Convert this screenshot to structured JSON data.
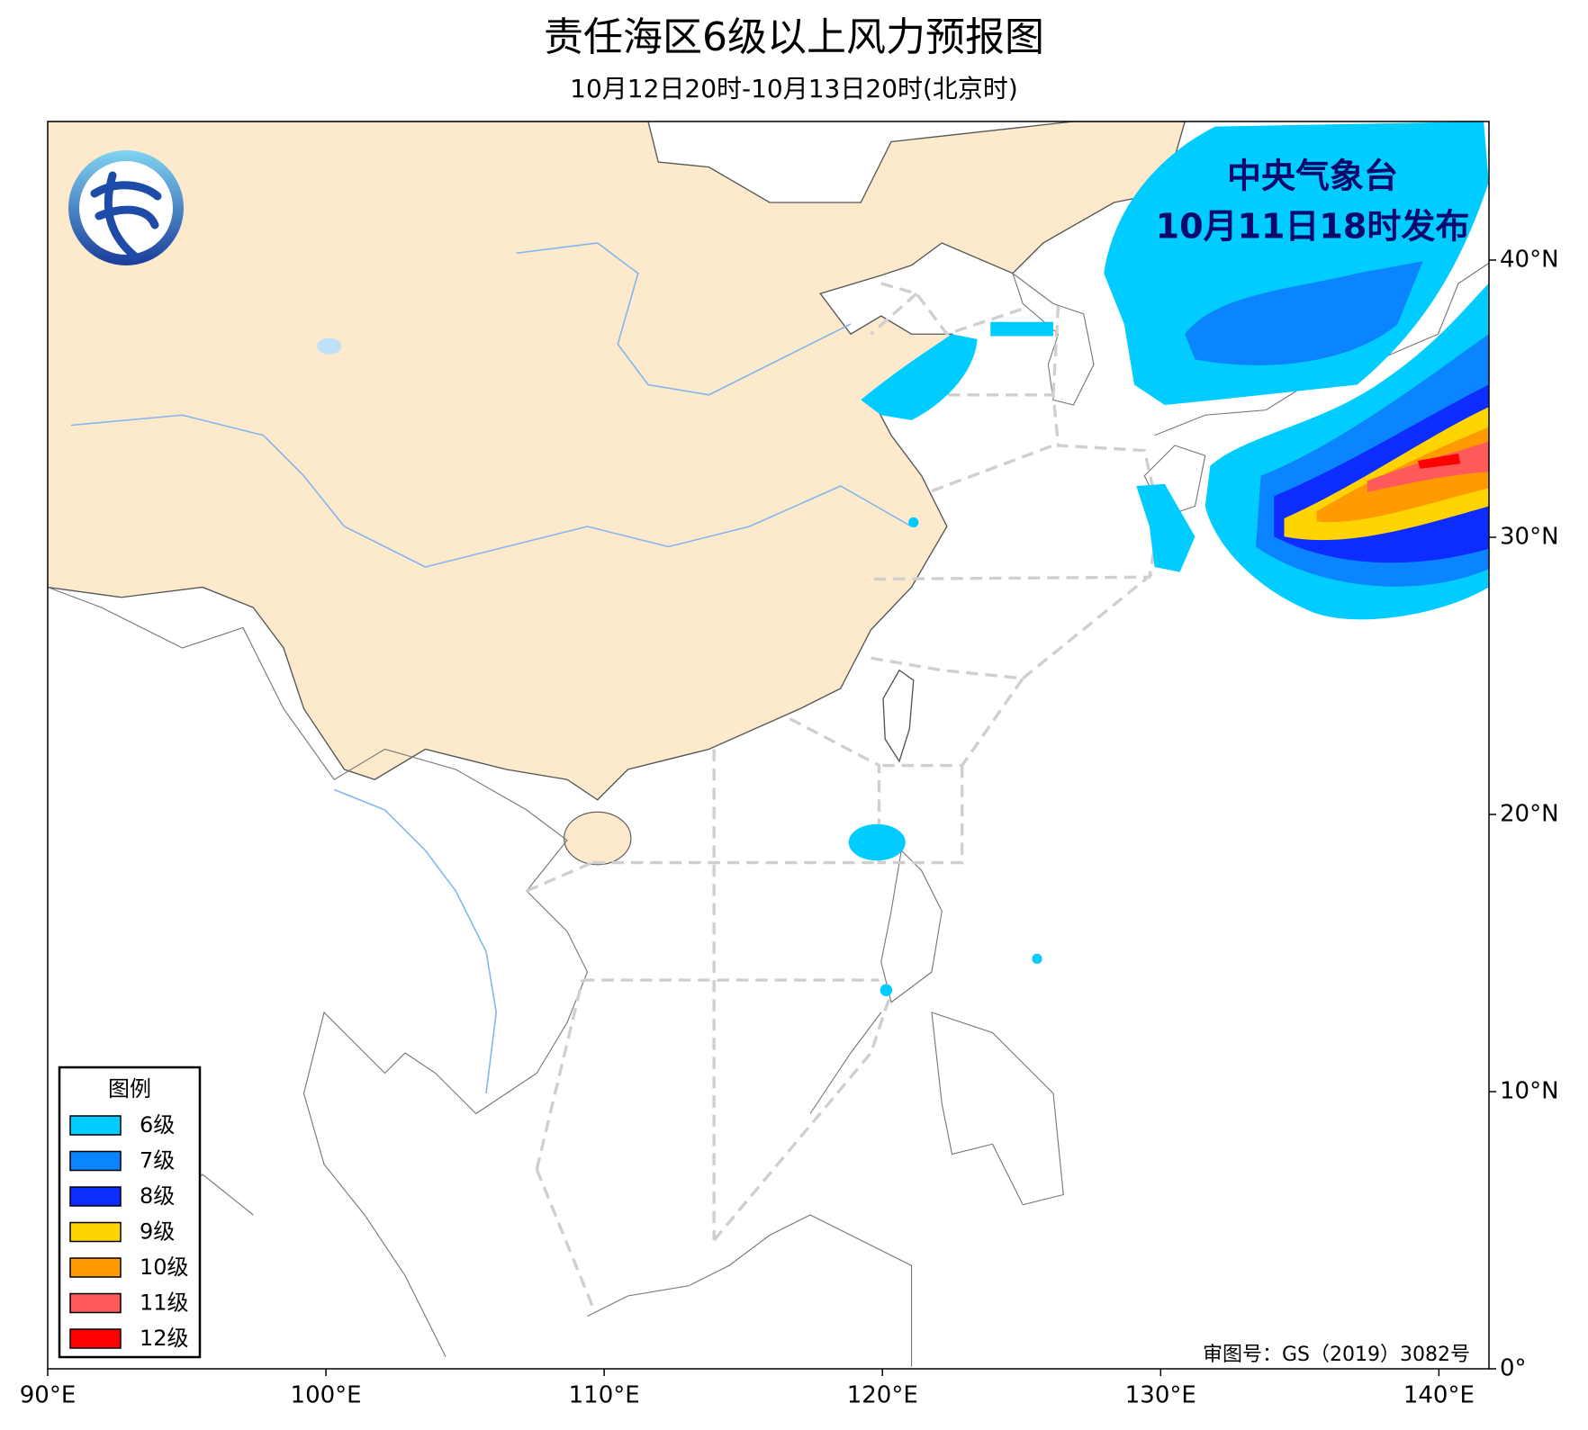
{
  "title": "责任海区6级以上风力预报图",
  "subtitle": "10月12日20时-10月13日20时(北京时)",
  "issuer": "中央气象台",
  "issued": "10月11日18时发布",
  "approval": "审图号：GS（2019）3082号",
  "legend": {
    "title": "图例",
    "items": [
      {
        "label": "6级",
        "color": "#00ccff"
      },
      {
        "label": "7级",
        "color": "#0a84ff"
      },
      {
        "label": "8级",
        "color": "#0d2cff"
      },
      {
        "label": "9级",
        "color": "#ffd400"
      },
      {
        "label": "10级",
        "color": "#ff9a00"
      },
      {
        "label": "11级",
        "color": "#ff5a5a"
      },
      {
        "label": "12级",
        "color": "#ff0000"
      }
    ]
  },
  "map": {
    "xlim": [
      90,
      141.8
    ],
    "ylim": [
      0,
      45
    ],
    "xticks": [
      {
        "value": 90,
        "label": "90°E"
      },
      {
        "value": 100,
        "label": "100°E"
      },
      {
        "value": 110,
        "label": "110°E"
      },
      {
        "value": 120,
        "label": "120°E"
      },
      {
        "value": 130,
        "label": "130°E"
      },
      {
        "value": 140,
        "label": "140°E"
      }
    ],
    "yticks": [
      {
        "value": 0,
        "label": "0°"
      },
      {
        "value": 10,
        "label": "10°N"
      },
      {
        "value": 20,
        "label": "20°N"
      },
      {
        "value": 30,
        "label": "30°N"
      },
      {
        "value": 40,
        "label": "40°N"
      }
    ]
  }
}
